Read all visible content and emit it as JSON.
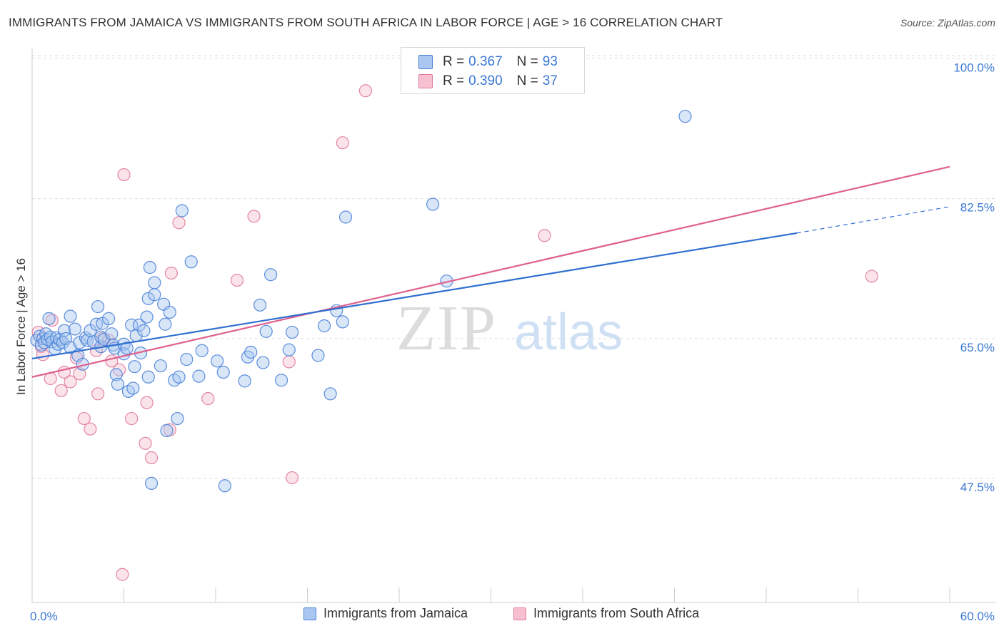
{
  "title": "IMMIGRANTS FROM JAMAICA VS IMMIGRANTS FROM SOUTH AFRICA IN LABOR FORCE | AGE > 16 CORRELATION CHART",
  "source": "Source: ZipAtlas.com",
  "watermark": {
    "bold": "ZIP",
    "light": "atlas"
  },
  "stats_legend": [
    {
      "r_label": "R =",
      "r_value": "0.367",
      "n_label": "N =",
      "n_value": "93"
    },
    {
      "r_label": "R =",
      "r_value": "0.390",
      "n_label": "N =",
      "n_value": "37"
    }
  ],
  "colors": {
    "jamaica_fill": "#a9c7f0",
    "jamaica_stroke": "#4a82d8",
    "jamaica_line": "#2f6fd0",
    "south_africa_fill": "#f7c0d0",
    "south_africa_stroke": "#e07a9a",
    "south_africa_line": "#e0608e",
    "tick_label": "#3a78d4",
    "grid": "#dddddd"
  },
  "chart_data": {
    "type": "scatter",
    "title": "IMMIGRANTS FROM JAMAICA VS IMMIGRANTS FROM SOUTH AFRICA IN LABOR FORCE | AGE > 16 CORRELATION CHART",
    "xlabel": "",
    "ylabel": "In Labor Force | Age > 16",
    "xlim": [
      0,
      60
    ],
    "ylim": [
      32,
      102
    ],
    "x_tick_labels": [
      "0.0%",
      "60.0%"
    ],
    "y_ticks": [
      47.5,
      65.0,
      82.5,
      100.0
    ],
    "y_tick_labels": [
      "47.5%",
      "65.0%",
      "82.5%",
      "100.0%"
    ],
    "grid": true,
    "legend_position": "top-center",
    "series": [
      {
        "name": "Immigrants from Jamaica",
        "r": 0.367,
        "n": 93,
        "trend": {
          "x_start": 0,
          "y_start": 62.5,
          "x_end": 50,
          "y_end": 78.2,
          "dash_x_end": 60,
          "dash_y_end": 81.5
        },
        "points": [
          [
            0.3,
            64.8
          ],
          [
            0.5,
            65.3
          ],
          [
            0.6,
            64.2
          ],
          [
            0.7,
            65.0
          ],
          [
            0.8,
            64.5
          ],
          [
            0.9,
            65.6
          ],
          [
            1.0,
            64.9
          ],
          [
            1.1,
            67.5
          ],
          [
            1.2,
            65.2
          ],
          [
            1.3,
            64.6
          ],
          [
            1.5,
            63.7
          ],
          [
            1.6,
            65.1
          ],
          [
            1.7,
            64.3
          ],
          [
            1.8,
            64.9
          ],
          [
            2.0,
            64.5
          ],
          [
            2.1,
            66.0
          ],
          [
            2.2,
            65.0
          ],
          [
            2.5,
            67.8
          ],
          [
            2.5,
            63.9
          ],
          [
            2.8,
            66.2
          ],
          [
            3.0,
            62.9
          ],
          [
            3.1,
            64.5
          ],
          [
            3.3,
            61.8
          ],
          [
            3.5,
            65.1
          ],
          [
            3.6,
            64.8
          ],
          [
            3.8,
            66.0
          ],
          [
            4.0,
            64.6
          ],
          [
            4.2,
            66.8
          ],
          [
            4.3,
            69.0
          ],
          [
            4.5,
            64.0
          ],
          [
            4.5,
            65.2
          ],
          [
            4.6,
            66.9
          ],
          [
            4.7,
            64.9
          ],
          [
            5.0,
            67.5
          ],
          [
            5.2,
            65.6
          ],
          [
            5.3,
            64.2
          ],
          [
            5.4,
            63.8
          ],
          [
            5.5,
            60.5
          ],
          [
            5.6,
            59.3
          ],
          [
            6.0,
            64.3
          ],
          [
            6.0,
            63.1
          ],
          [
            6.2,
            63.8
          ],
          [
            6.3,
            58.4
          ],
          [
            6.5,
            66.7
          ],
          [
            6.6,
            58.8
          ],
          [
            6.7,
            61.5
          ],
          [
            6.8,
            65.4
          ],
          [
            7.0,
            66.7
          ],
          [
            7.1,
            63.2
          ],
          [
            7.3,
            66.0
          ],
          [
            7.5,
            67.7
          ],
          [
            7.6,
            60.2
          ],
          [
            7.6,
            70.0
          ],
          [
            7.7,
            73.9
          ],
          [
            7.8,
            46.9
          ],
          [
            8.0,
            70.5
          ],
          [
            8.0,
            72.0
          ],
          [
            8.4,
            61.6
          ],
          [
            8.6,
            69.3
          ],
          [
            8.7,
            66.8
          ],
          [
            8.8,
            53.5
          ],
          [
            9.0,
            68.3
          ],
          [
            9.3,
            59.8
          ],
          [
            9.5,
            55.0
          ],
          [
            9.6,
            60.2
          ],
          [
            9.8,
            81.0
          ],
          [
            10.1,
            62.4
          ],
          [
            10.4,
            74.6
          ],
          [
            10.9,
            60.3
          ],
          [
            11.1,
            63.5
          ],
          [
            12.1,
            62.2
          ],
          [
            12.5,
            60.8
          ],
          [
            12.6,
            46.6
          ],
          [
            13.9,
            59.7
          ],
          [
            14.1,
            62.7
          ],
          [
            14.3,
            63.3
          ],
          [
            14.9,
            69.2
          ],
          [
            15.1,
            62.0
          ],
          [
            15.3,
            65.9
          ],
          [
            15.6,
            73.0
          ],
          [
            16.3,
            59.8
          ],
          [
            16.8,
            63.6
          ],
          [
            17.0,
            65.8
          ],
          [
            18.7,
            62.9
          ],
          [
            19.1,
            66.6
          ],
          [
            19.5,
            58.1
          ],
          [
            19.9,
            68.5
          ],
          [
            20.3,
            67.1
          ],
          [
            20.5,
            80.2
          ],
          [
            26.2,
            81.8
          ],
          [
            27.1,
            72.2
          ],
          [
            42.7,
            92.8
          ]
        ]
      },
      {
        "name": "Immigrants from South Africa",
        "r": 0.39,
        "n": 37,
        "trend": {
          "x_start": 0,
          "y_start": 60.2,
          "x_end": 60,
          "y_end": 86.5
        },
        "points": [
          [
            0.4,
            65.8
          ],
          [
            0.6,
            64.0
          ],
          [
            0.7,
            63.0
          ],
          [
            1.2,
            60.0
          ],
          [
            1.3,
            67.3
          ],
          [
            1.9,
            58.5
          ],
          [
            2.1,
            60.8
          ],
          [
            2.5,
            59.6
          ],
          [
            2.9,
            62.6
          ],
          [
            3.1,
            60.6
          ],
          [
            3.4,
            55.0
          ],
          [
            3.8,
            53.7
          ],
          [
            4.2,
            63.5
          ],
          [
            4.3,
            58.1
          ],
          [
            4.6,
            65.0
          ],
          [
            5.0,
            64.8
          ],
          [
            5.2,
            62.2
          ],
          [
            5.7,
            61.1
          ],
          [
            5.9,
            35.5
          ],
          [
            6.0,
            85.5
          ],
          [
            6.5,
            55.0
          ],
          [
            7.4,
            51.9
          ],
          [
            7.5,
            57.0
          ],
          [
            7.8,
            50.1
          ],
          [
            9.0,
            53.6
          ],
          [
            9.1,
            73.2
          ],
          [
            9.6,
            79.5
          ],
          [
            11.5,
            57.5
          ],
          [
            13.4,
            72.3
          ],
          [
            14.5,
            80.3
          ],
          [
            16.8,
            62.1
          ],
          [
            17.0,
            47.6
          ],
          [
            20.3,
            89.5
          ],
          [
            21.8,
            96.0
          ],
          [
            33.5,
            77.9
          ],
          [
            54.9,
            72.8
          ]
        ]
      }
    ]
  }
}
